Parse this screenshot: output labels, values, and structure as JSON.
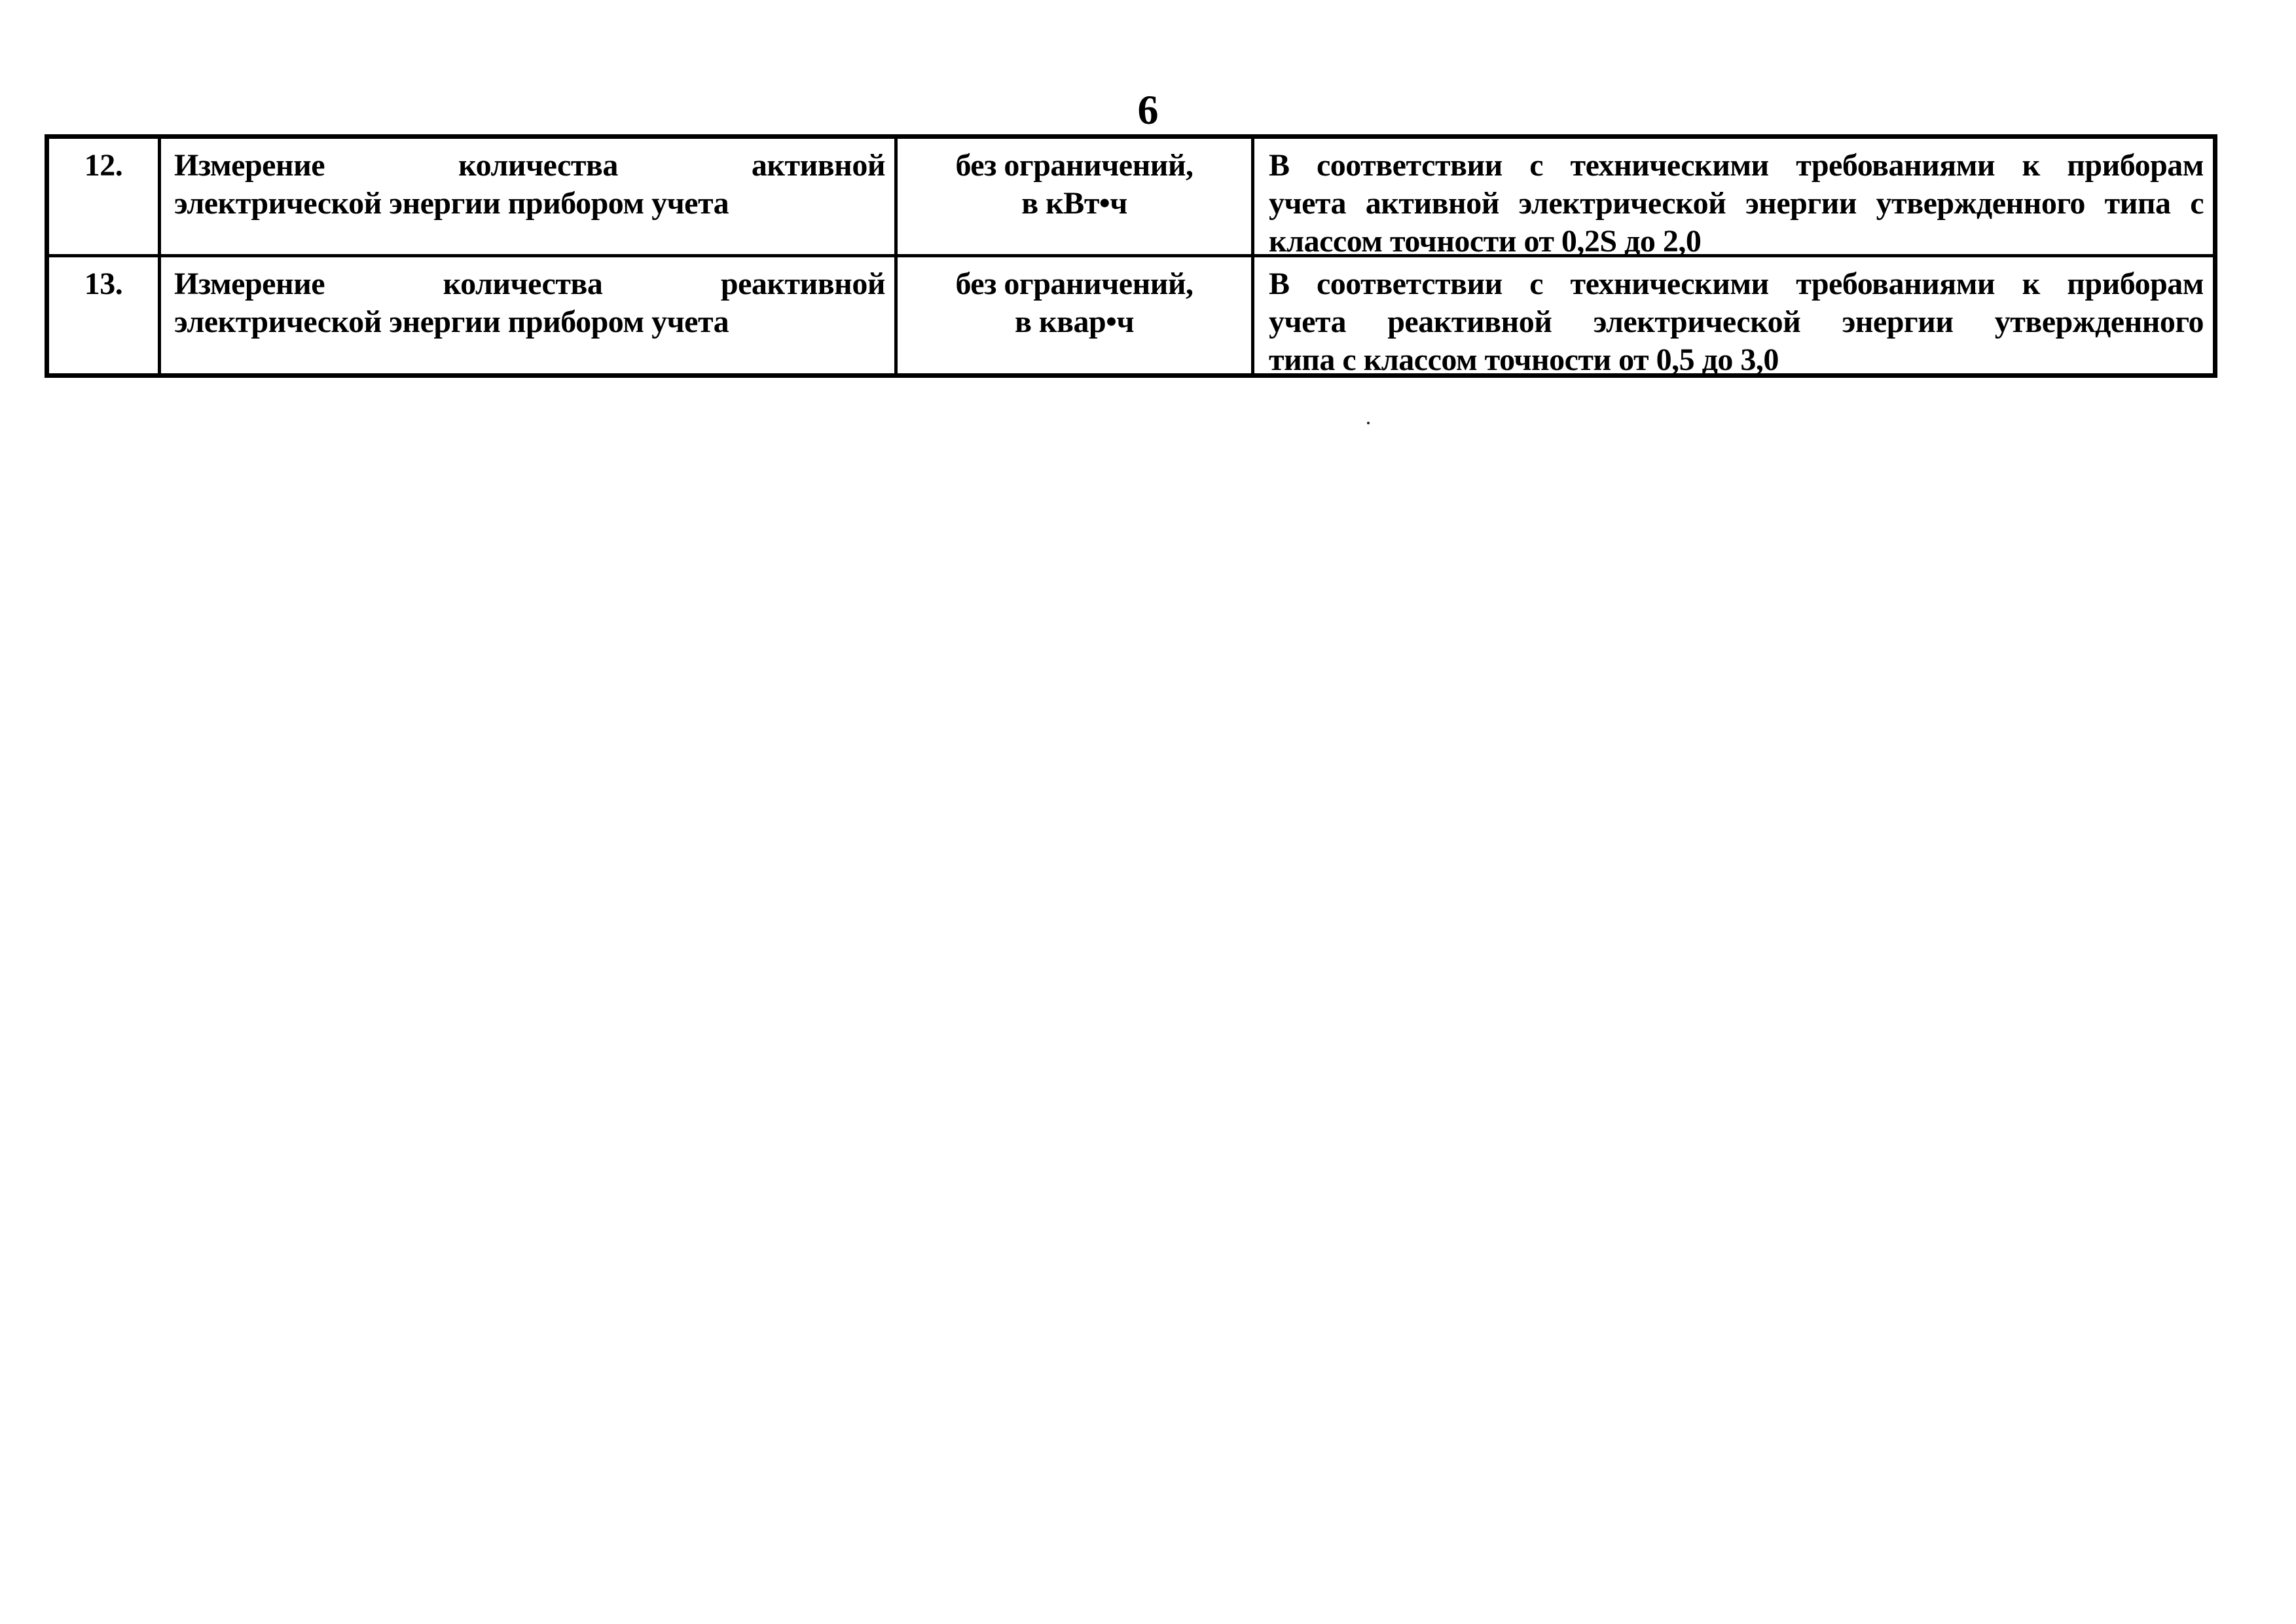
{
  "page": {
    "number": "6"
  },
  "colors": {
    "ink": "#000000",
    "paper": "#ffffff"
  },
  "table": {
    "rows": [
      {
        "num": "12.",
        "service_lines": [
          "Измерение количества активной",
          "электрической энергии прибором учета"
        ],
        "limit_lines": [
          "без ограничений,",
          "в кВт•ч"
        ],
        "req_lines": [
          "В соответствии с техническими требованиями к приборам",
          "учета активной электрической энергии утвержденного типа с",
          "классом точности от 0,2S до 2,0"
        ]
      },
      {
        "num": "13.",
        "service_lines": [
          "Измерение количества реактивной",
          "электрической энергии прибором учета"
        ],
        "limit_lines": [
          "без ограничений,",
          "в квар•ч"
        ],
        "req_lines": [
          "В соответствии с техническими требованиями к приборам",
          "учета реактивной электрической энергии утвержденного",
          "типа с классом точности от 0,5 до 3,0"
        ]
      }
    ]
  }
}
